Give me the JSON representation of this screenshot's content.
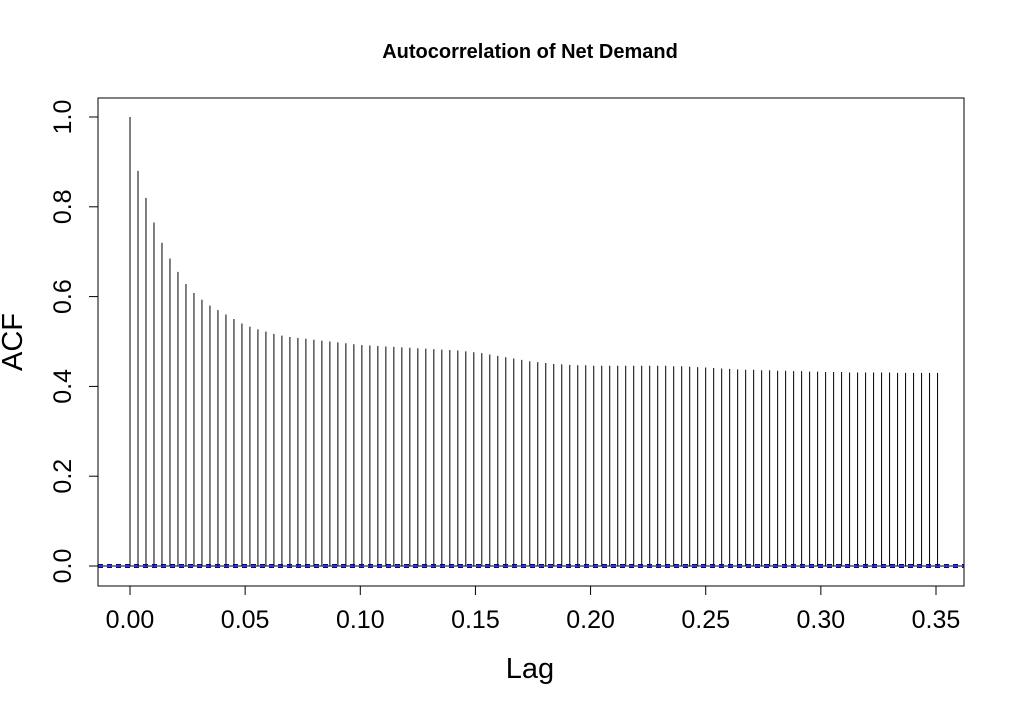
{
  "chart_data": {
    "type": "bar",
    "style": "vertical-spikes",
    "title": "Autocorrelation of Net Demand",
    "xlabel": "Lag",
    "ylabel": "ACF",
    "xlim": [
      0,
      0.35
    ],
    "ylim": [
      0,
      1.0
    ],
    "x_ticks": [
      "0.00",
      "0.05",
      "0.10",
      "0.15",
      "0.20",
      "0.25",
      "0.30",
      "0.35"
    ],
    "y_ticks": [
      "0.0",
      "0.2",
      "0.4",
      "0.6",
      "0.8",
      "1.0"
    ],
    "grid": false,
    "legend": "none",
    "lag_step": 0.003472,
    "series": [
      {
        "values": [
          1.0,
          0.88,
          0.82,
          0.765,
          0.72,
          0.685,
          0.655,
          0.628,
          0.608,
          0.593,
          0.58,
          0.57,
          0.56,
          0.55,
          0.54,
          0.533,
          0.527,
          0.522,
          0.517,
          0.513,
          0.51,
          0.508,
          0.506,
          0.504,
          0.502,
          0.5,
          0.498,
          0.496,
          0.494,
          0.492,
          0.491,
          0.49,
          0.489,
          0.488,
          0.487,
          0.486,
          0.485,
          0.484,
          0.483,
          0.482,
          0.481,
          0.48,
          0.478,
          0.476,
          0.474,
          0.471,
          0.468,
          0.465,
          0.462,
          0.459,
          0.456,
          0.454,
          0.452,
          0.45,
          0.449,
          0.448,
          0.447,
          0.447,
          0.446,
          0.446,
          0.446,
          0.446,
          0.446,
          0.446,
          0.446,
          0.446,
          0.446,
          0.446,
          0.445,
          0.445,
          0.444,
          0.443,
          0.442,
          0.441,
          0.44,
          0.439,
          0.438,
          0.437,
          0.437,
          0.436,
          0.436,
          0.435,
          0.435,
          0.434,
          0.434,
          0.433,
          0.433,
          0.432,
          0.432,
          0.432,
          0.431,
          0.431,
          0.431,
          0.431,
          0.431,
          0.431,
          0.43,
          0.43,
          0.43,
          0.43,
          0.43,
          0.43
        ]
      }
    ],
    "confidence_bound": 0.003,
    "colors": {
      "bars": "#000000",
      "zero_line": "#000000",
      "confidence_line": "#0000cc"
    }
  }
}
